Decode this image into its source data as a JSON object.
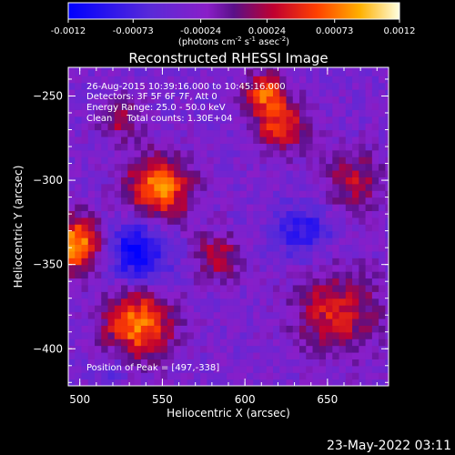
{
  "chart_data": {
    "type": "heatmap",
    "title": "Reconstructed RHESSI Image",
    "xlabel": "Heliocentric X (arcsec)",
    "ylabel": "Heliocentric Y (arcsec)",
    "xlim": [
      493,
      687
    ],
    "ylim": [
      -422,
      -233
    ],
    "x_ticks": [
      500,
      550,
      600,
      650
    ],
    "y_ticks": [
      -400,
      -350,
      -300,
      -250
    ],
    "colorbar": {
      "range": [
        -0.0012,
        0.0012
      ],
      "ticks": [
        "-0.0012",
        "-0.00073",
        "-0.00024",
        "0.00024",
        "0.00073",
        "0.0012"
      ],
      "unit_parts": [
        "(photons cm",
        "-2",
        " s",
        "-1",
        " asec",
        "-2",
        ")"
      ]
    },
    "annotations": [
      "26-Aug-2015 10:39:16.000 to 10:45:16.000",
      "Detectors: 3F 5F 6F 7F, Att 0",
      "Energy Range: 25.0 - 50.0 keV",
      "Clean     Total counts: 1.30E+04"
    ],
    "peak_label": "Position of Peak = [497,-338]",
    "peak_position": [
      497,
      -338
    ],
    "footer_date": "23-May-2022 03:11",
    "sources": [
      {
        "x": 497,
        "y": -338,
        "sigma": 12,
        "amp": 0.00122
      },
      {
        "x": 548,
        "y": -305,
        "sigma": 14,
        "amp": 0.00115
      },
      {
        "x": 535,
        "y": -385,
        "sigma": 15,
        "amp": 0.00112
      },
      {
        "x": 622,
        "y": -268,
        "sigma": 11,
        "amp": 0.00085
      },
      {
        "x": 612,
        "y": -248,
        "sigma": 9,
        "amp": 0.0009
      },
      {
        "x": 655,
        "y": -378,
        "sigma": 18,
        "amp": 0.00075
      },
      {
        "x": 665,
        "y": -300,
        "sigma": 13,
        "amp": 0.0006
      },
      {
        "x": 583,
        "y": -345,
        "sigma": 10,
        "amp": 0.00062
      },
      {
        "x": 525,
        "y": -263,
        "sigma": 9,
        "amp": 0.00055
      }
    ],
    "negative_sources": [
      {
        "x": 535,
        "y": -342,
        "sigma": 14,
        "amp": 0.00085
      },
      {
        "x": 635,
        "y": -330,
        "sigma": 12,
        "amp": 0.00055
      },
      {
        "x": 520,
        "y": -410,
        "sigma": 8,
        "amp": 0.0003
      }
    ],
    "background_level": -0.00035
  }
}
